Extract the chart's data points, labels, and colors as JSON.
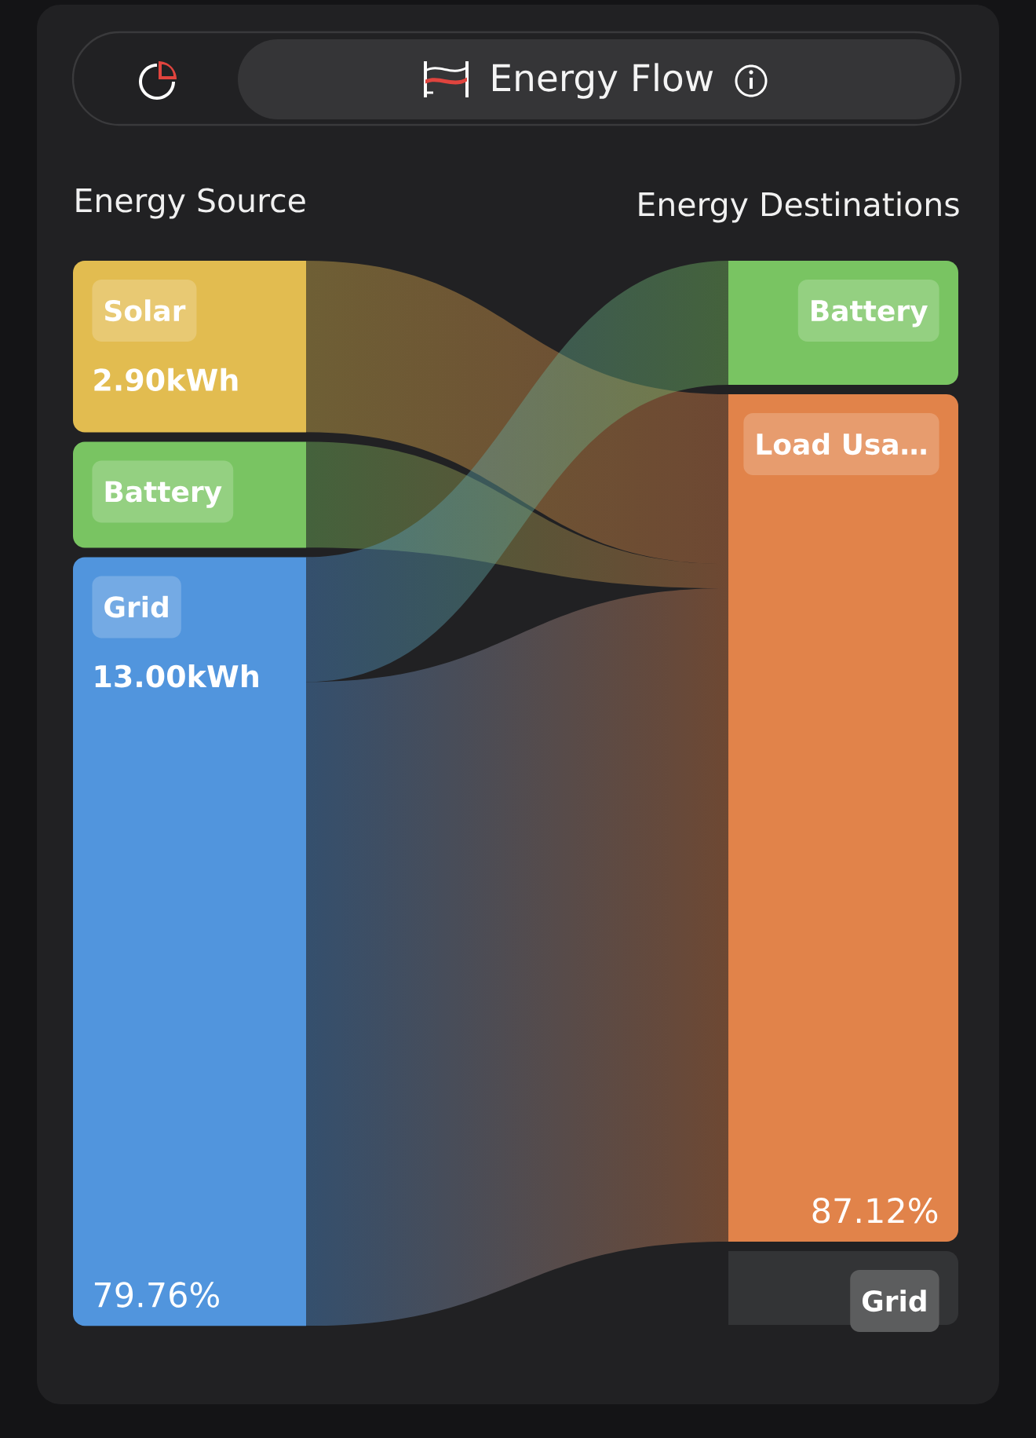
{
  "chart_data": {
    "type": "other",
    "title": "Energy Flow",
    "categories": [
      "Solar",
      "Battery",
      "Grid"
    ],
    "y2_categories": [
      "Battery",
      "Load Usa…",
      "Grid"
    ],
    "series": [
      {
        "name": "Energy Source",
        "colors": [
          "#e2bc50",
          "#79c462",
          "#5195dd"
        ],
        "values": [
          2.9,
          null,
          13.0
        ],
        "value_labels": [
          "2.90kWh",
          null,
          "13.00kWh"
        ]
      },
      {
        "name": "Energy Destinations",
        "colors": [
          "#79c462",
          "#e1834a",
          "#333436"
        ],
        "values": [
          null,
          null,
          null
        ]
      }
    ],
    "annotations": [
      "79.76%",
      "87.12%"
    ]
  }
}
